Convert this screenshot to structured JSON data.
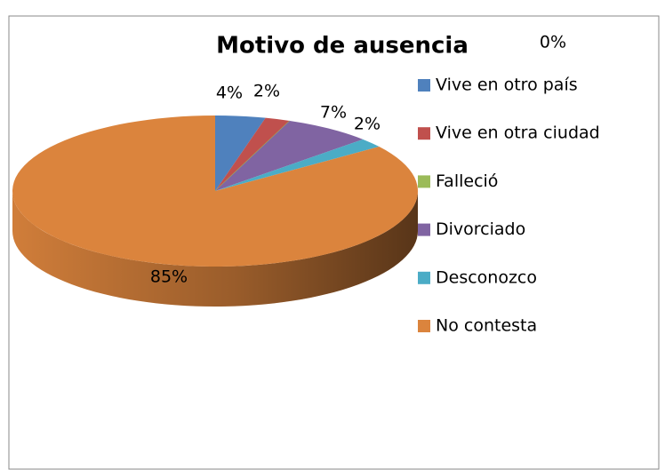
{
  "chart_data": {
    "type": "pie",
    "title": "Motivo de ausencia",
    "categories": [
      "Vive en otro país",
      "Vive en otra ciudad",
      "Falleció",
      "Divorciado",
      "Desconozco",
      "No contesta"
    ],
    "values": [
      4,
      2,
      0,
      7,
      2,
      85
    ],
    "value_labels": [
      "4%",
      "2%",
      "0%",
      "7%",
      "2%",
      "85%"
    ],
    "colors": [
      "#4f81bd",
      "#c0504d",
      "#9bbb59",
      "#8064a2",
      "#4bacc6",
      "#db843d"
    ],
    "legend": "right"
  }
}
